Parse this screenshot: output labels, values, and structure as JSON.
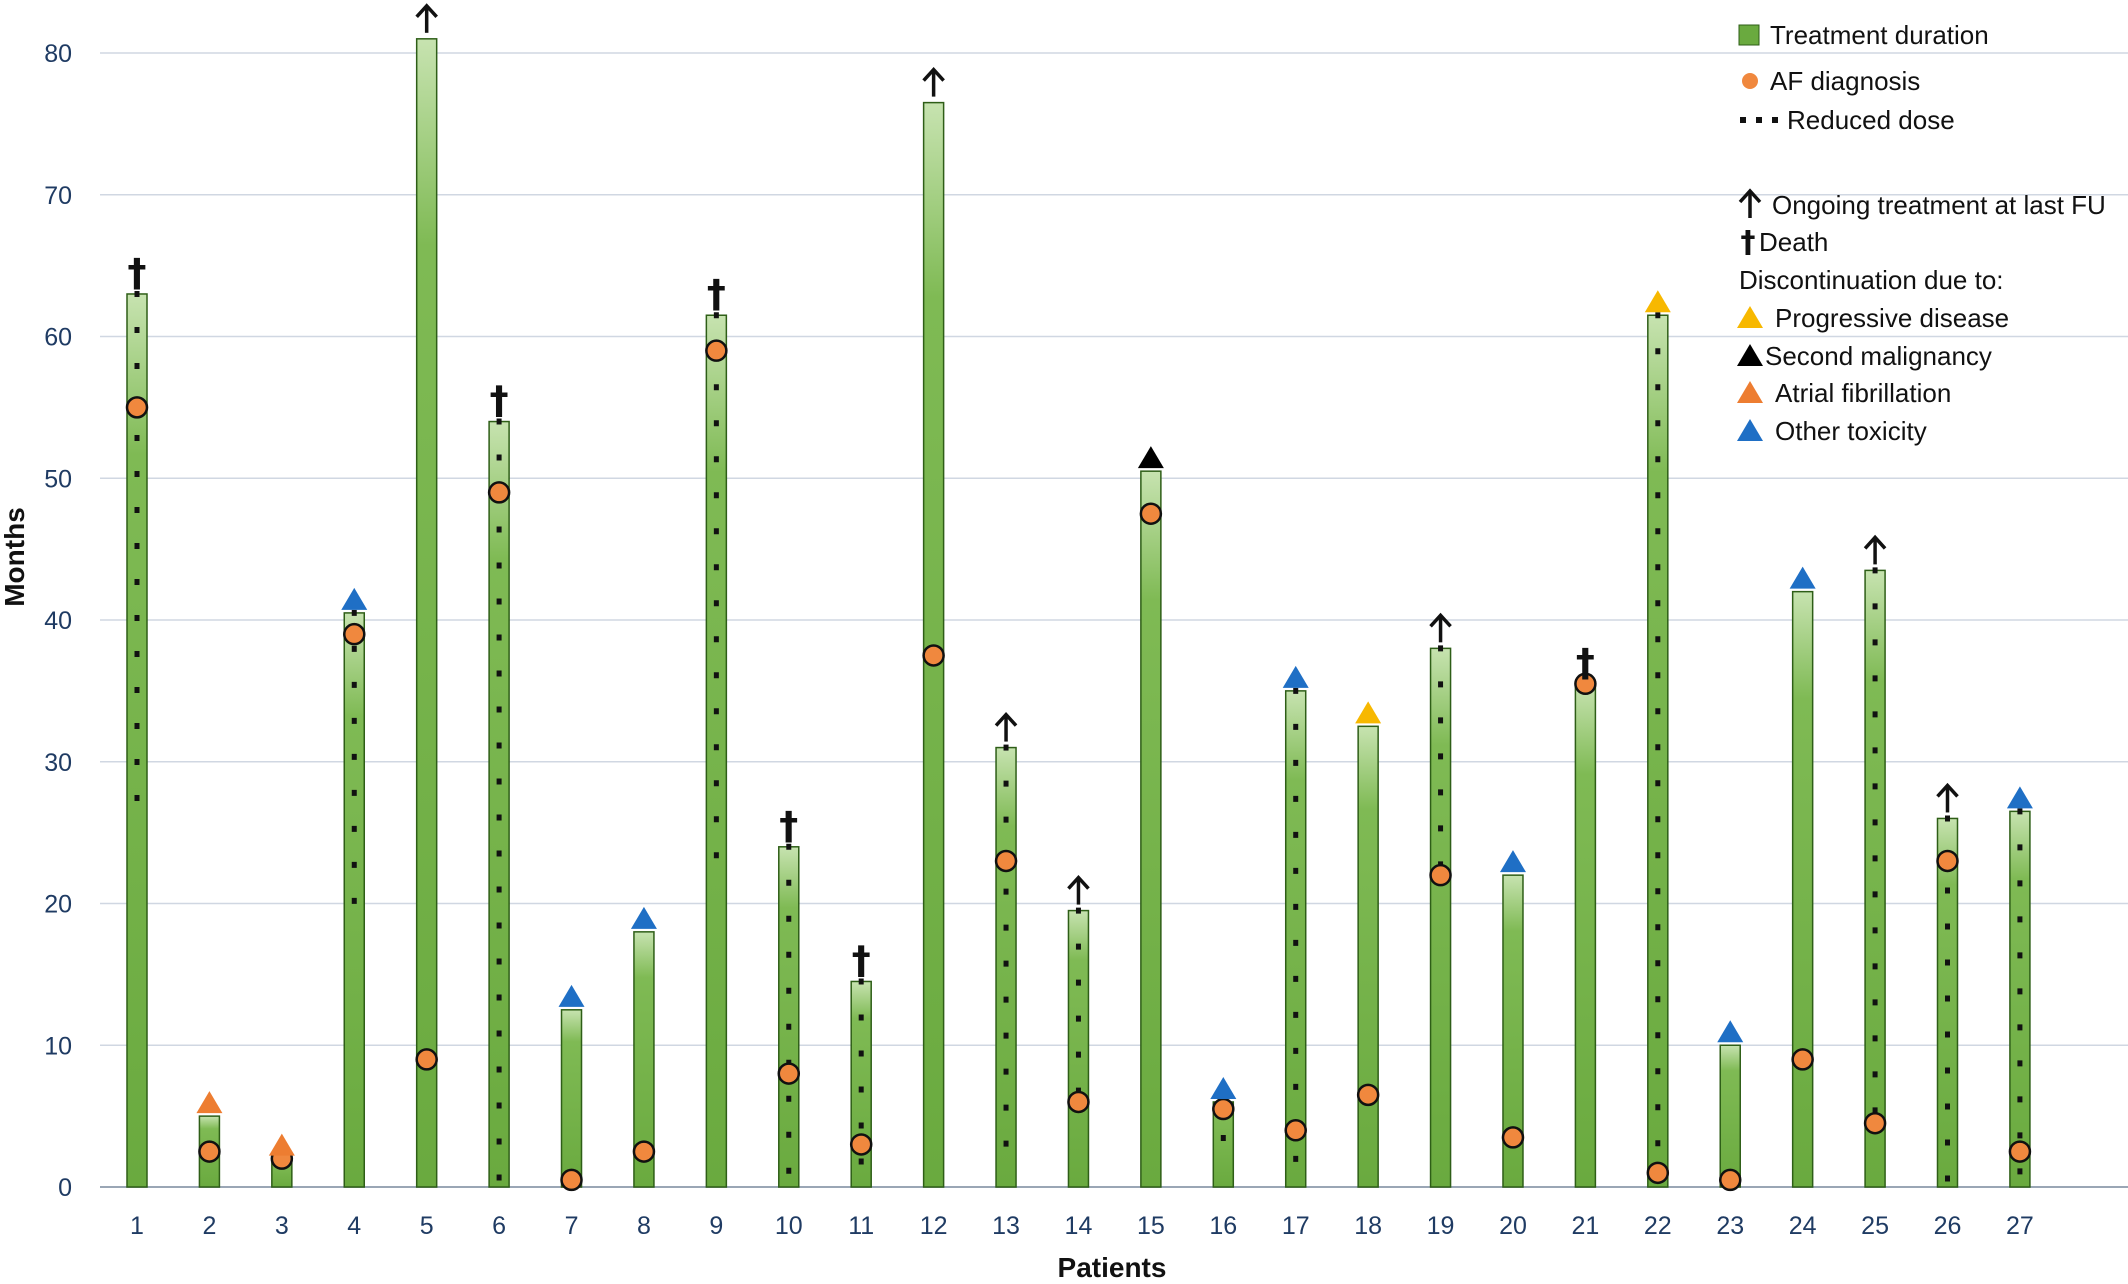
{
  "chart_data": {
    "type": "bar",
    "xlabel": "Patients",
    "ylabel": "Months",
    "ylim": [
      0,
      82
    ],
    "yticks": [
      0,
      10,
      20,
      30,
      40,
      50,
      60,
      70,
      80
    ],
    "grid": true,
    "categories": [
      "1",
      "2",
      "3",
      "4",
      "5",
      "6",
      "7",
      "8",
      "9",
      "10",
      "11",
      "12",
      "13",
      "14",
      "15",
      "16",
      "17",
      "18",
      "19",
      "20",
      "21",
      "22",
      "23",
      "24",
      "25",
      "26",
      "27"
    ],
    "series": [
      {
        "name": "Treatment duration",
        "values": [
          63,
          5,
          2,
          40.5,
          81,
          54,
          12.5,
          18,
          61.5,
          24,
          14.5,
          76.5,
          31,
          19.5,
          50.5,
          6,
          35,
          32.5,
          38,
          22,
          35.5,
          61.5,
          10,
          42,
          43.5,
          26,
          26.5
        ]
      },
      {
        "name": "AF diagnosis",
        "values": [
          55,
          2.5,
          2,
          39,
          9,
          49,
          0.5,
          2.5,
          59,
          8,
          3,
          37.5,
          23,
          6,
          47.5,
          5.5,
          4,
          6.5,
          22,
          3.5,
          35.5,
          1,
          0.5,
          9,
          4.5,
          23,
          2.5
        ]
      }
    ],
    "reduced_dose": [
      {
        "patient": "1",
        "from": 27,
        "to": 63
      },
      {
        "patient": "4",
        "from": 19,
        "to": 40.5
      },
      {
        "patient": "6",
        "from": 0,
        "to": 54
      },
      {
        "patient": "9",
        "from": 23,
        "to": 61.5
      },
      {
        "patient": "10",
        "from": 0,
        "to": 24
      },
      {
        "patient": "11",
        "from": 0,
        "to": 14.5
      },
      {
        "patient": "13",
        "from": 1,
        "to": 31
      },
      {
        "patient": "14",
        "from": 6,
        "to": 19.5
      },
      {
        "patient": "16",
        "from": 1,
        "to": 6
      },
      {
        "patient": "17",
        "from": 0,
        "to": 35
      },
      {
        "patient": "19",
        "from": 22,
        "to": 38
      },
      {
        "patient": "22",
        "from": 1,
        "to": 61.5
      },
      {
        "patient": "25",
        "from": 5,
        "to": 43.5
      },
      {
        "patient": "26",
        "from": 0,
        "to": 26
      },
      {
        "patient": "27",
        "from": 0,
        "to": 26.5
      }
    ],
    "end_markers": [
      {
        "patient": "1",
        "type": "death"
      },
      {
        "patient": "2",
        "type": "atrial-fibrillation"
      },
      {
        "patient": "3",
        "type": "atrial-fibrillation"
      },
      {
        "patient": "4",
        "type": "other-toxicity"
      },
      {
        "patient": "5",
        "type": "ongoing"
      },
      {
        "patient": "6",
        "type": "death"
      },
      {
        "patient": "7",
        "type": "other-toxicity"
      },
      {
        "patient": "8",
        "type": "other-toxicity"
      },
      {
        "patient": "9",
        "type": "death"
      },
      {
        "patient": "10",
        "type": "death"
      },
      {
        "patient": "11",
        "type": "death"
      },
      {
        "patient": "12",
        "type": "ongoing"
      },
      {
        "patient": "13",
        "type": "ongoing"
      },
      {
        "patient": "14",
        "type": "ongoing"
      },
      {
        "patient": "15",
        "type": "second-malignancy"
      },
      {
        "patient": "16",
        "type": "other-toxicity"
      },
      {
        "patient": "17",
        "type": "other-toxicity"
      },
      {
        "patient": "18",
        "type": "progressive-disease"
      },
      {
        "patient": "19",
        "type": "ongoing"
      },
      {
        "patient": "20",
        "type": "other-toxicity"
      },
      {
        "patient": "21",
        "type": "death"
      },
      {
        "patient": "22",
        "type": "progressive-disease"
      },
      {
        "patient": "23",
        "type": "other-toxicity"
      },
      {
        "patient": "24",
        "type": "other-toxicity"
      },
      {
        "patient": "25",
        "type": "ongoing"
      },
      {
        "patient": "26",
        "type": "ongoing"
      },
      {
        "patient": "27",
        "type": "other-toxicity"
      }
    ],
    "legend": {
      "placement": "top-right",
      "items": [
        {
          "key": "bar",
          "label": "Treatment duration"
        },
        {
          "key": "af",
          "label": "AF diagnosis"
        },
        {
          "key": "dots",
          "label": "Reduced dose"
        },
        {
          "key": "gap",
          "label": ""
        },
        {
          "key": "ongoing",
          "label": "Ongoing treatment at last FU"
        },
        {
          "key": "death",
          "label": "Death"
        },
        {
          "key": "heading",
          "label": "Discontinuation due to:"
        },
        {
          "key": "progressive-disease",
          "label": "Progressive disease"
        },
        {
          "key": "second-malignancy",
          "label": "Second malignancy"
        },
        {
          "key": "atrial-fibrillation",
          "label": "Atrial fibrillation"
        },
        {
          "key": "other-toxicity",
          "label": "Other toxicity"
        }
      ]
    },
    "colors": {
      "bar_fill": "#6aaa3f",
      "bar_top": "#c7e3b0",
      "bar_stroke": "#2e5e17",
      "af_fill": "#f0883e",
      "progressive-disease": "#f7b800",
      "second-malignancy": "#000000",
      "atrial-fibrillation": "#ed7d31",
      "other-toxicity": "#1f6fc5",
      "grid": "#d0d7e2",
      "tick": "#1f3b63"
    }
  }
}
